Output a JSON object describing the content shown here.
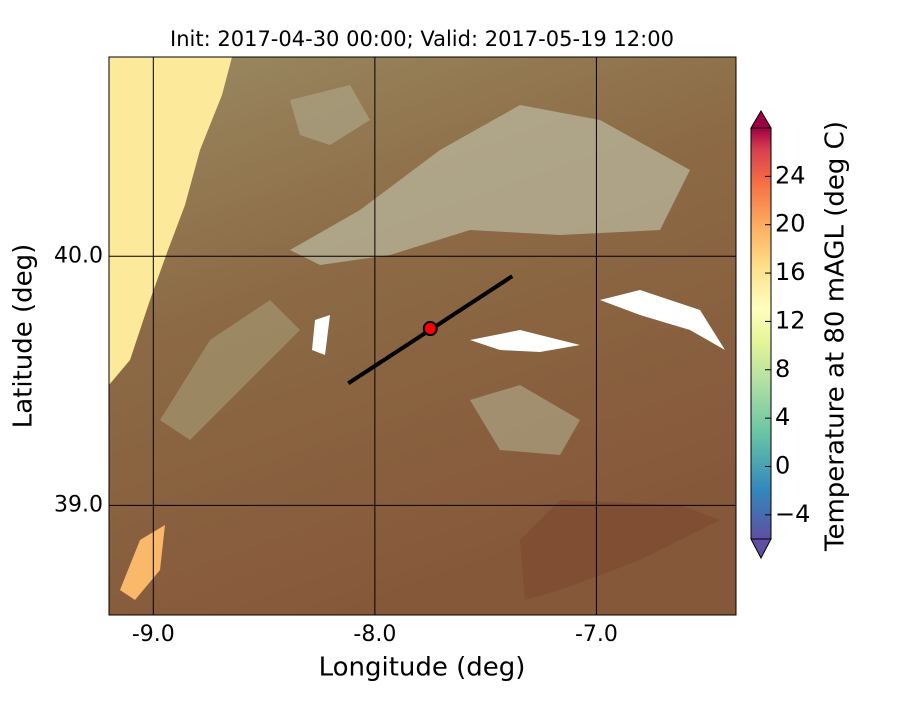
{
  "chart_data": {
    "type": "map",
    "title": "Init: 2017-04-30 00:00; Valid: 2017-05-19 12:00",
    "x_label": "Longitude (deg)",
    "y_label": "Latitude (deg)",
    "xlim": [
      -9.2,
      -6.37
    ],
    "ylim": [
      38.56,
      40.8
    ],
    "xticks": [
      {
        "value": -9,
        "label": "-9.0"
      },
      {
        "value": -8,
        "label": "-8.0"
      },
      {
        "value": -7,
        "label": "-7.0"
      }
    ],
    "yticks": [
      {
        "value": 39,
        "label": "39.0"
      },
      {
        "value": 40,
        "label": "40.0"
      }
    ],
    "colorbar": {
      "label": "Temperature at 80 mAGL (deg C)",
      "lim": [
        -6,
        28
      ],
      "ticks": [
        {
          "value": -4,
          "label": "−4"
        },
        0,
        4,
        8,
        12,
        16,
        20,
        24
      ]
    },
    "transect": {
      "x": [
        -8.12,
        -7.38
      ],
      "y": [
        39.49,
        39.92
      ]
    },
    "point": {
      "x": [
        -7.75
      ],
      "y": [
        39.71
      ]
    }
  }
}
